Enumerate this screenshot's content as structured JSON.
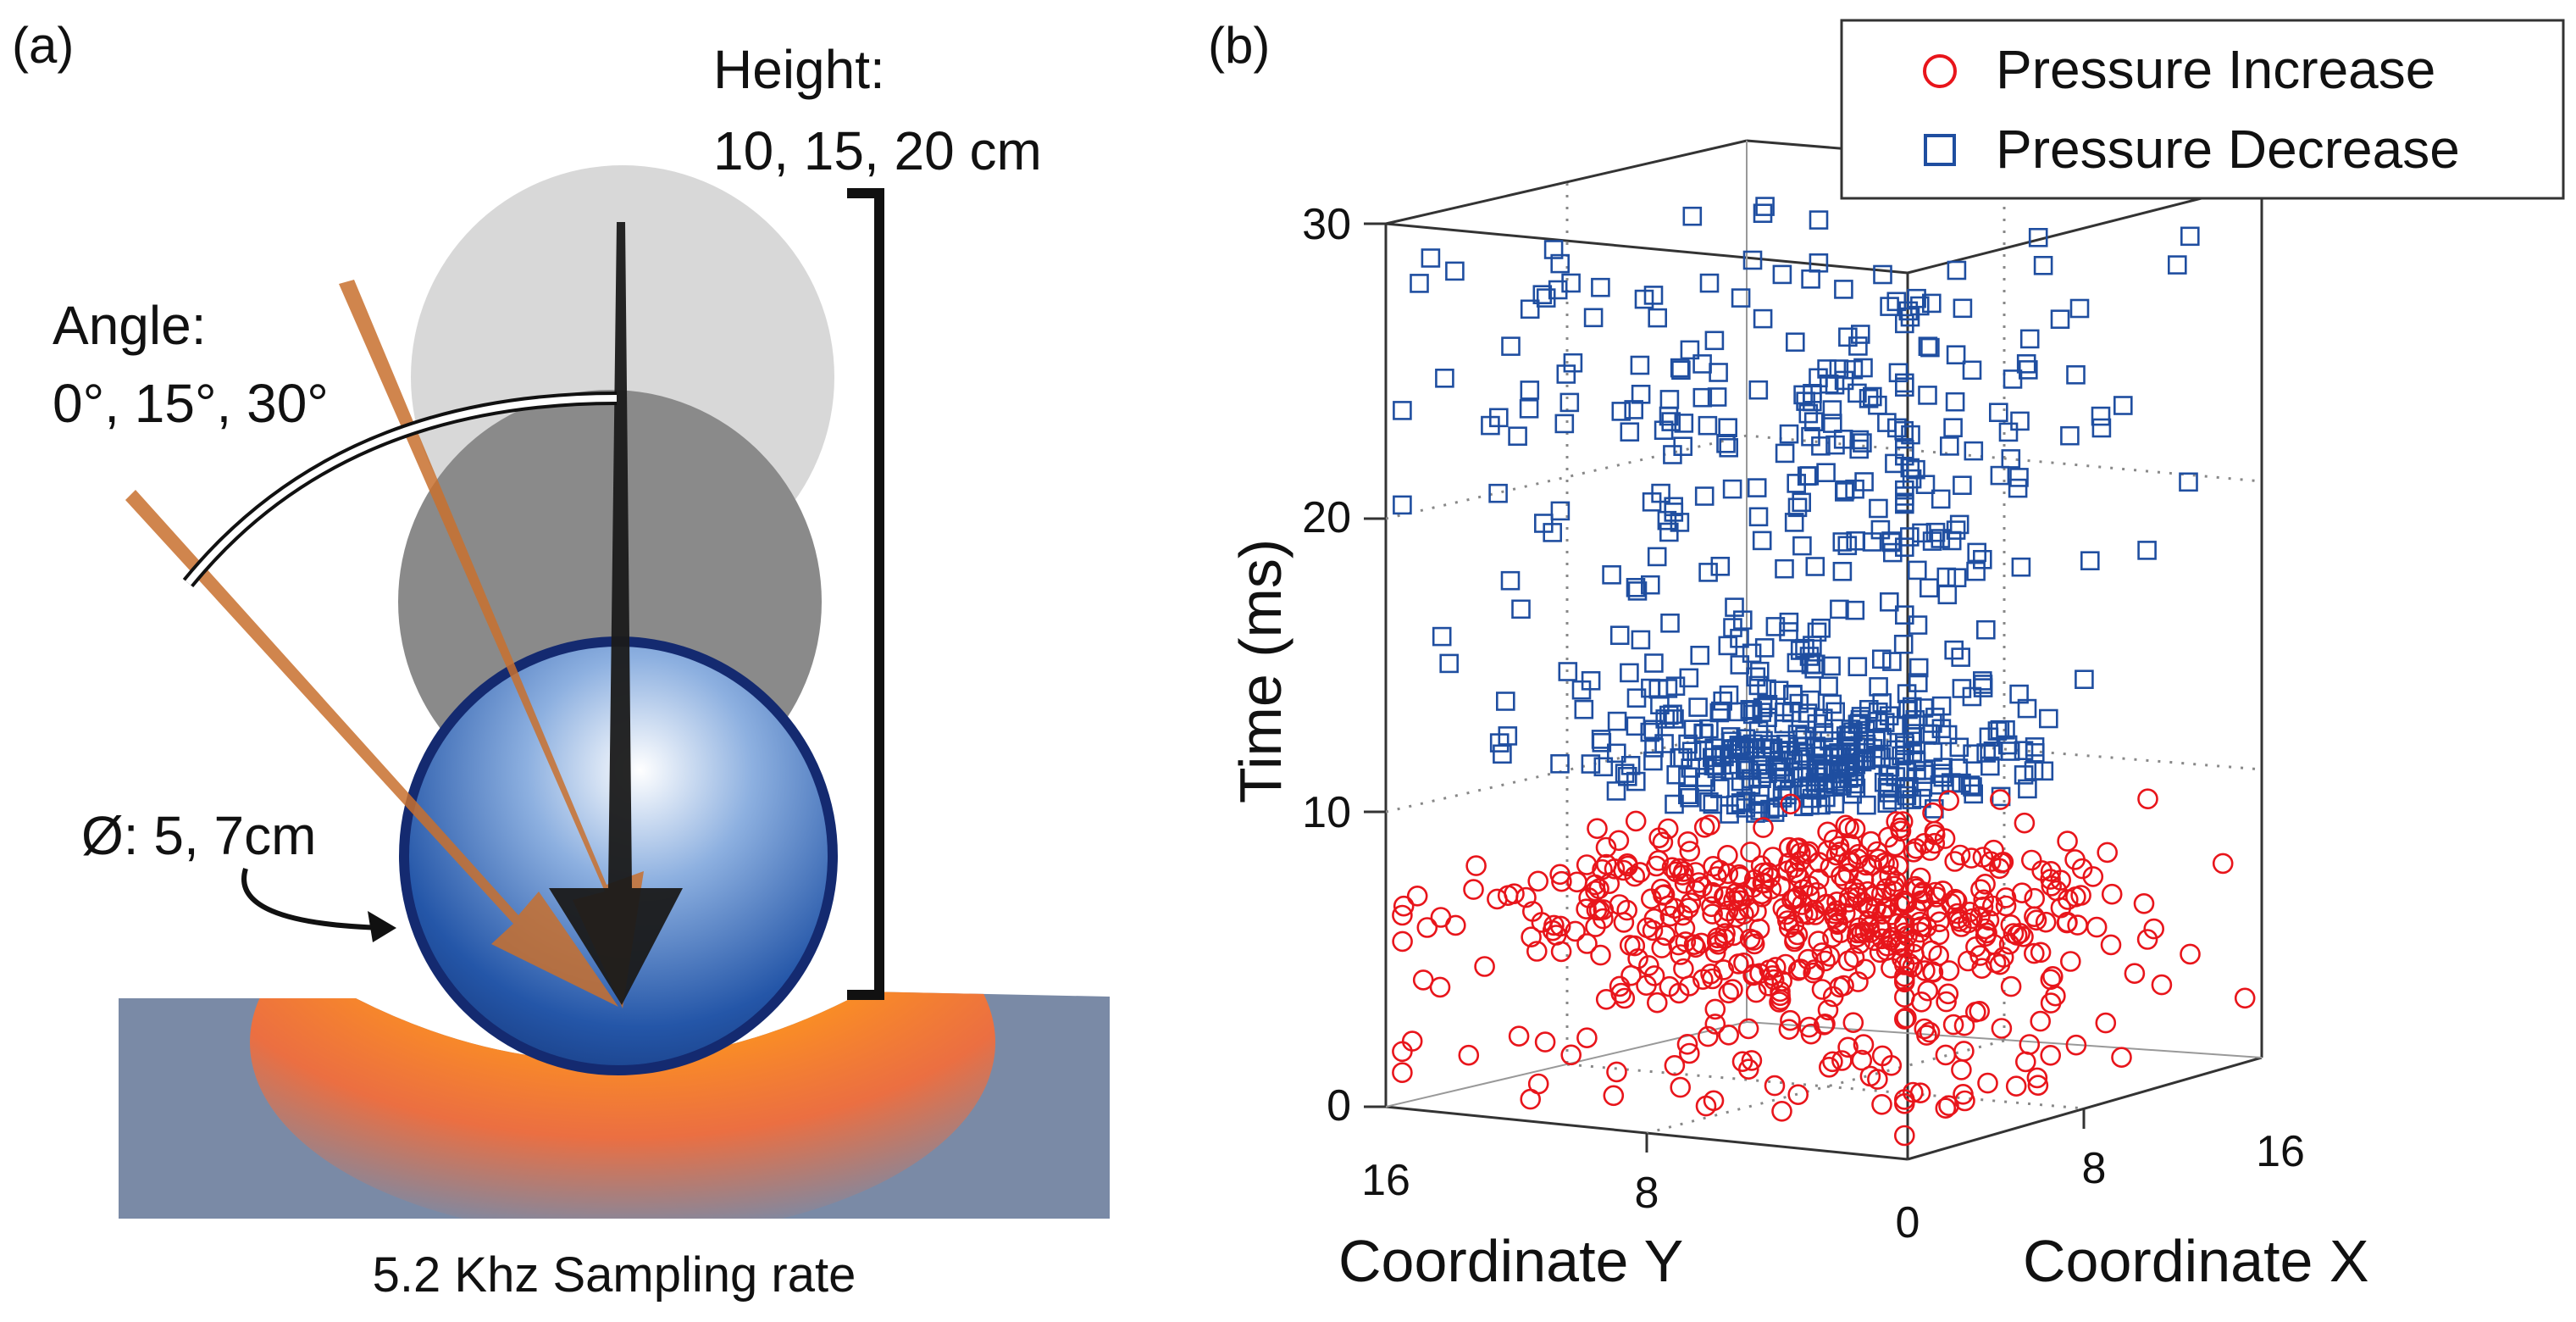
{
  "panel_a": {
    "label": "(a)",
    "height_title": "Height:",
    "height_values": "10, 15, 20  cm",
    "angle_title": "Angle:",
    "angle_values": "0°, 15°, 30°",
    "diameter": "Ø: 5, 7cm",
    "sampling": "5.2 Khz Sampling rate"
  },
  "panel_b": {
    "label": "(b)"
  },
  "colors": {
    "increase": "#e8151b",
    "decrease": "#1f4ea0",
    "ball": "#2456a8",
    "surface": "#7a8aa6",
    "arrow_orange": "#c8702e"
  },
  "chart_data": {
    "type": "scatter",
    "dimensions": 3,
    "title": "",
    "xlabel": "Coordinate X",
    "ylabel": "Coordinate Y",
    "zlabel": "Time (ms)",
    "xlim": [
      0,
      16
    ],
    "ylim": [
      0,
      16
    ],
    "zlim": [
      0,
      30
    ],
    "xticks": [
      "0",
      "8",
      "16"
    ],
    "yticks": [
      "16",
      "8"
    ],
    "zticks": [
      "0",
      "10",
      "20",
      "30"
    ],
    "legend": {
      "position": "top-right",
      "entries": [
        "Pressure Increase",
        "Pressure Decrease"
      ]
    },
    "series": [
      {
        "name": "Pressure Increase",
        "marker": "circle",
        "time_range_ms": [
          0,
          10
        ],
        "approx_count": 560,
        "densest_time_ms": 7
      },
      {
        "name": "Pressure Decrease",
        "marker": "square",
        "time_range_ms": [
          9,
          29
        ],
        "approx_count": 600,
        "densest_time_ms": 11
      }
    ]
  }
}
